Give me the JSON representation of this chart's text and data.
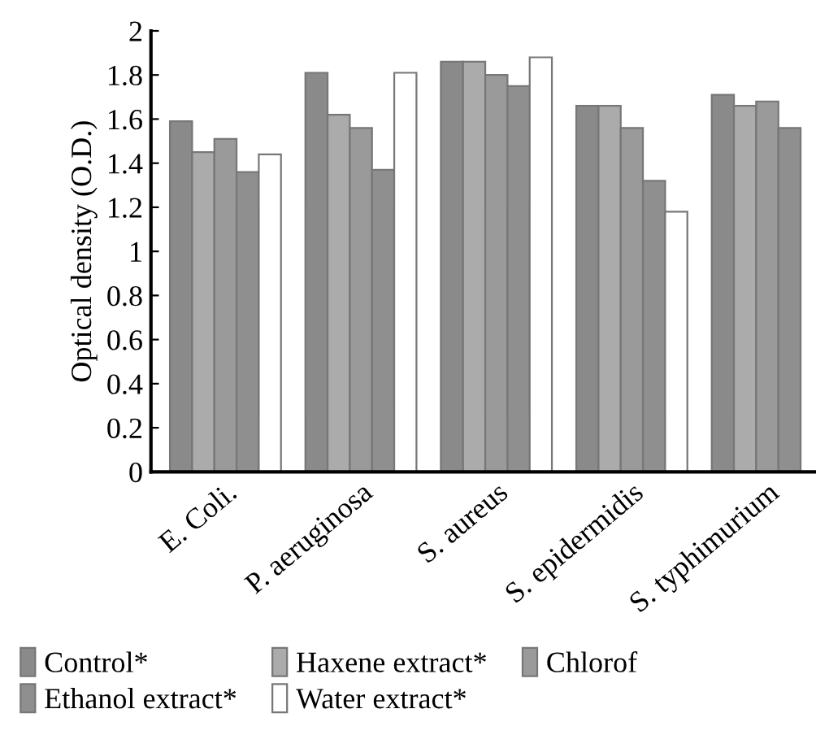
{
  "chart_data": {
    "type": "bar",
    "ylabel": "Optical density (O.D.)",
    "categories": [
      "E. Coli.",
      "P. aeruginosa",
      "S. aureus",
      "S. epidermidis",
      "S. typhimurium"
    ],
    "series": [
      {
        "name": "Control*",
        "color": "#8a8a8a",
        "values": [
          1.59,
          1.81,
          1.86,
          1.66,
          1.71
        ]
      },
      {
        "name": "Haxene extract*",
        "color": "#ababab",
        "values": [
          1.45,
          1.62,
          1.86,
          1.66,
          1.66
        ]
      },
      {
        "name": "Chlorof",
        "color": "#9a9a9a",
        "values": [
          1.51,
          1.56,
          1.8,
          1.56,
          1.68
        ]
      },
      {
        "name": "Ethanol extract*",
        "color": "#8f8f8f",
        "values": [
          1.36,
          1.37,
          1.75,
          1.32,
          1.56
        ]
      },
      {
        "name": "Water extract*",
        "color": "#ffffff",
        "values": [
          1.44,
          1.81,
          1.88,
          1.18,
          null
        ]
      }
    ],
    "ylim": [
      0,
      2
    ],
    "yticks": [
      0,
      0.2,
      0.4,
      0.6,
      0.8,
      1,
      1.2,
      1.4,
      1.6,
      1.8,
      2
    ],
    "grid": false,
    "legend": "bottom"
  }
}
